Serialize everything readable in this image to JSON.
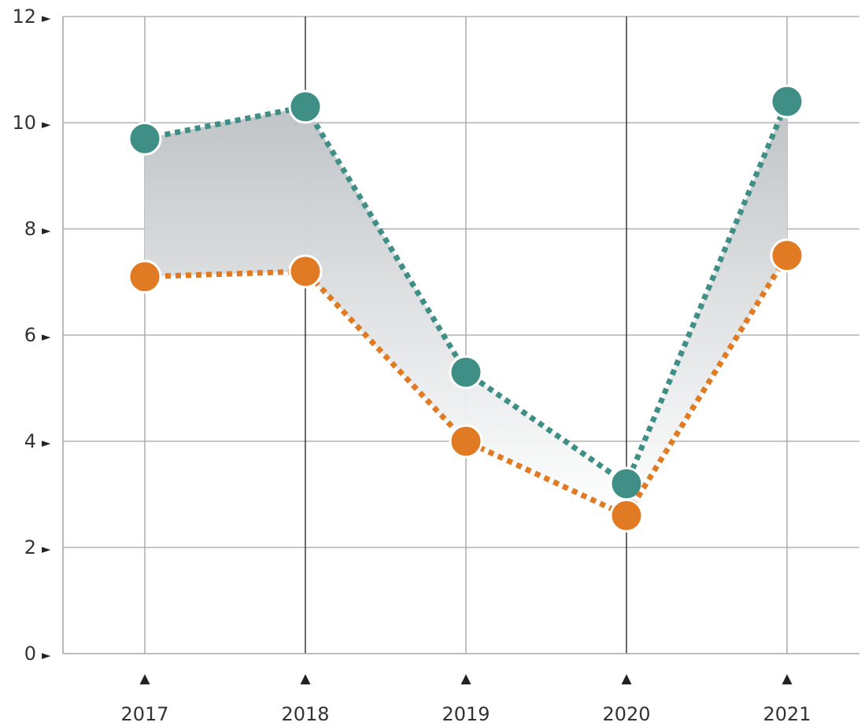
{
  "chart_data": {
    "type": "line",
    "title": "",
    "xlabel": "",
    "ylabel": "",
    "categories": [
      "2017",
      "2018",
      "2019",
      "2020",
      "2021"
    ],
    "ylim": [
      0,
      12
    ],
    "yticks": [
      0,
      2,
      4,
      6,
      8,
      10,
      12
    ],
    "grid": true,
    "legend": "none",
    "shaded_between_series": true,
    "series": [
      {
        "values": [
          9.7,
          10.3,
          5.3,
          3.2,
          10.4
        ],
        "color": "#3f8f86",
        "style": "dotted-with-markers"
      },
      {
        "values": [
          7.1,
          7.2,
          4.0,
          2.6,
          7.5
        ],
        "color": "#e07b24",
        "style": "dotted-with-markers"
      }
    ],
    "tick_marker_glyphs": {
      "y": "►",
      "x": "▲"
    }
  }
}
